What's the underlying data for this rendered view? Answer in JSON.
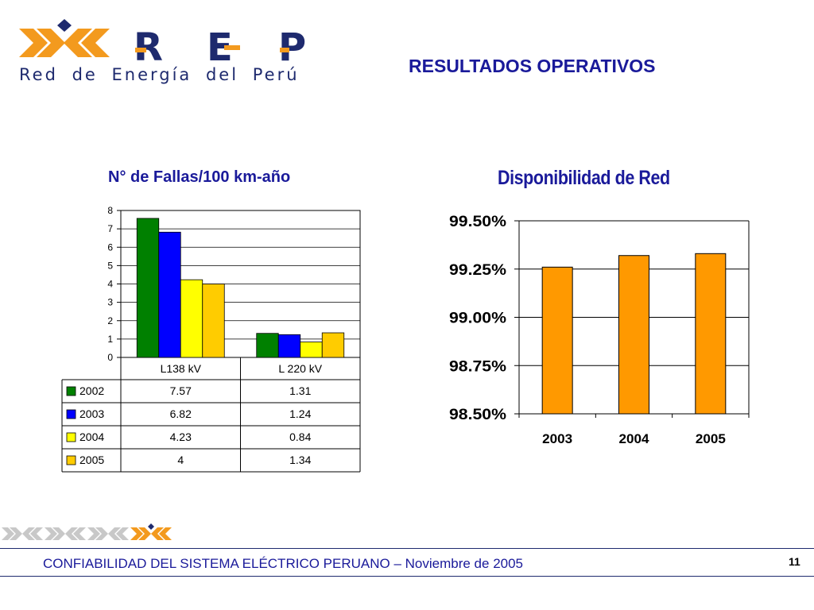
{
  "header": {
    "logo_letters": [
      "R",
      "E",
      "P"
    ],
    "logo_subtitle": "Red de Energía del Perú",
    "title": "RESULTADOS OPERATIVOS"
  },
  "colors": {
    "brand_orange": "#f39a1e",
    "brand_navy": "#1e2a6e",
    "title_blue": "#1a1a9a",
    "bar_orange": "#ff9900"
  },
  "chart_data": [
    {
      "type": "bar",
      "title": "N° de Fallas/100 km-año",
      "categories": [
        "L138 kV",
        "L 220 kV"
      ],
      "series": [
        {
          "name": "2002",
          "values": [
            7.57,
            1.31
          ],
          "labels": [
            "7.57",
            "1.31"
          ],
          "color": "#008000"
        },
        {
          "name": "2003",
          "values": [
            6.82,
            1.24
          ],
          "labels": [
            "6.82",
            "1.24"
          ],
          "color": "#0000ff"
        },
        {
          "name": "2004",
          "values": [
            4.23,
            0.84
          ],
          "labels": [
            "4.23",
            "0.84"
          ],
          "color": "#ffff00"
        },
        {
          "name": "2005",
          "values": [
            4,
            1.34
          ],
          "labels": [
            "4",
            "1.34"
          ],
          "color": "#ffcc00"
        }
      ],
      "ylim": [
        0,
        8
      ],
      "yticks": [
        "0",
        "1",
        "2",
        "3",
        "4",
        "5",
        "6",
        "7",
        "8"
      ],
      "grid": true,
      "legend": "data table"
    },
    {
      "type": "bar",
      "title": "Disponibilidad de Red",
      "categories": [
        "2003",
        "2004",
        "2005"
      ],
      "values": [
        99.26,
        99.32,
        99.33
      ],
      "ylim": [
        98.5,
        99.5
      ],
      "yticks": [
        "98.50%",
        "98.75%",
        "99.00%",
        "99.25%",
        "99.50%"
      ],
      "grid": true
    }
  ],
  "footer": {
    "text": "CONFIABILIDAD DEL SISTEMA ELÉCTRICO PERUANO – Noviembre de 2005",
    "page_number": "11"
  }
}
